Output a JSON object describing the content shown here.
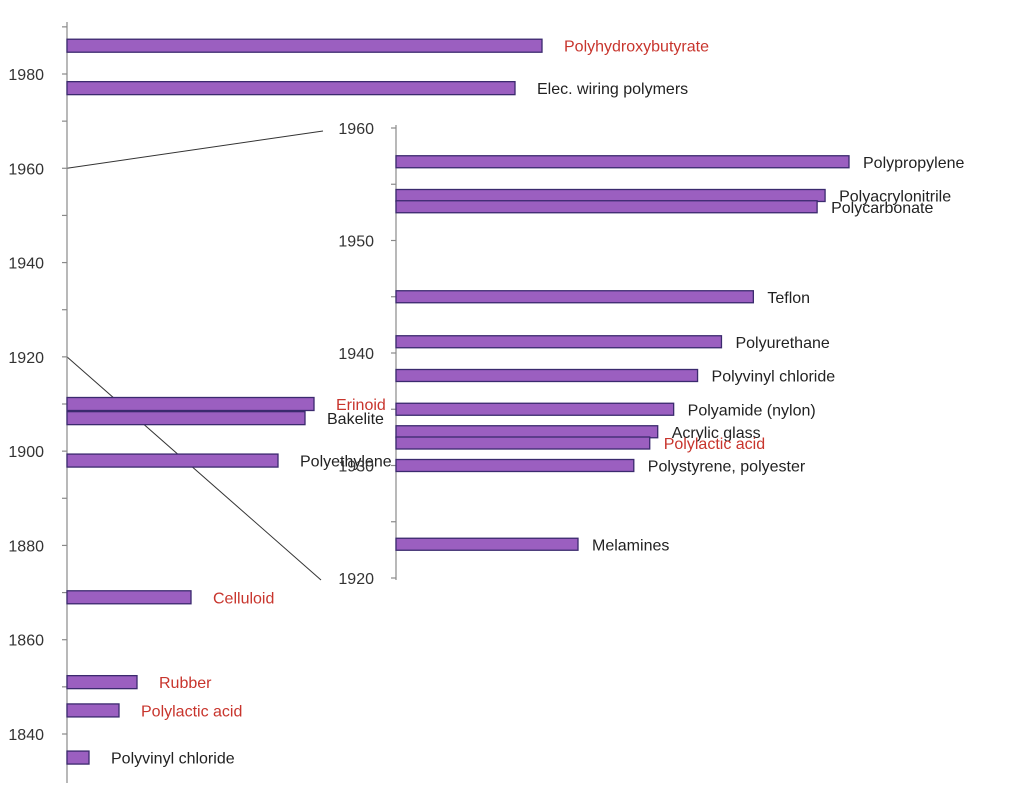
{
  "colors": {
    "bar_fill": "#9b5fc0",
    "bar_stroke": "#3b2a6e",
    "label_default": "#222222",
    "label_highlight": "#c8352d",
    "axis": "#8a8a8a"
  },
  "chart_data": [
    {
      "type": "bar",
      "orientation": "horizontal",
      "panel": "main",
      "title": "",
      "xlabel": "",
      "ylabel": "",
      "ylim": [
        1834,
        1992
      ],
      "y_tick_labels": [
        "1840",
        "1860",
        "1880",
        "1900",
        "1920",
        "1940",
        "1960",
        "1980"
      ],
      "y_minor_ticks": [
        1850,
        1870,
        1890,
        1910,
        1930,
        1950,
        1970,
        1990
      ],
      "grid": false,
      "bars": [
        {
          "label": "Polyhydroxybutyrate",
          "year": 1986,
          "highlight": true
        },
        {
          "label": "Elec. wiring polymers",
          "year": 1977,
          "highlight": false
        },
        {
          "label": "Erinoid",
          "year": 1910,
          "highlight": true
        },
        {
          "label": "Bakelite",
          "year": 1907,
          "highlight": false
        },
        {
          "label": "Polyethylene",
          "year": 1898,
          "highlight": false
        },
        {
          "label": "Celluloid",
          "year": 1869,
          "highlight": true
        },
        {
          "label": "Rubber",
          "year": 1851,
          "highlight": true
        },
        {
          "label": "Polylactic acid",
          "year": 1845,
          "highlight": true
        },
        {
          "label": "Polyvinyl chloride",
          "year": 1835,
          "highlight": false
        }
      ]
    },
    {
      "type": "bar",
      "orientation": "horizontal",
      "panel": "inset",
      "title": "",
      "xlabel": "",
      "ylabel": "",
      "ylim": [
        1920,
        1960
      ],
      "y_tick_labels": [
        "1920",
        "1930",
        "1940",
        "1950",
        "1960"
      ],
      "y_minor_ticks": [
        1925,
        1935,
        1945,
        1955
      ],
      "grid": false,
      "bars": [
        {
          "label": "Polypropylene",
          "year": 1957,
          "highlight": false
        },
        {
          "label": "Polyacrylonitrile",
          "year": 1954,
          "highlight": false
        },
        {
          "label": "Polycarbonate",
          "year": 1953,
          "highlight": false
        },
        {
          "label": "Teflon",
          "year": 1945,
          "highlight": false
        },
        {
          "label": "Polyurethane",
          "year": 1941,
          "highlight": false
        },
        {
          "label": "Polyvinyl chloride",
          "year": 1938,
          "highlight": false
        },
        {
          "label": "Polyamide (nylon)",
          "year": 1935,
          "highlight": false
        },
        {
          "label": "Acrylic glass",
          "year": 1933,
          "highlight": false
        },
        {
          "label": "Polylactic acid",
          "year": 1932,
          "highlight": true
        },
        {
          "label": "Polystyrene, polyester",
          "year": 1930,
          "highlight": false
        },
        {
          "label": "Melamines",
          "year": 1923,
          "highlight": false
        }
      ]
    }
  ]
}
